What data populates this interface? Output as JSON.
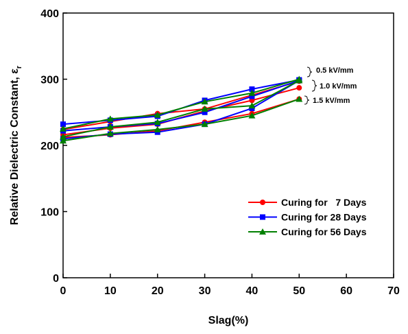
{
  "chart_data": {
    "type": "line",
    "x_label": "Slag(%)",
    "y_label": {
      "text": "Relative Dielectric Constant, ε",
      "subscript": "r"
    },
    "x": [
      0,
      10,
      20,
      30,
      40,
      50
    ],
    "xlim": [
      0,
      70
    ],
    "xticks": [
      0,
      10,
      20,
      30,
      40,
      50,
      60,
      70
    ],
    "ylim": [
      0,
      400
    ],
    "yticks": [
      0,
      100,
      200,
      300,
      400
    ],
    "annotations": [
      "0.5 kV/mm",
      "1.0 kV/mm",
      "1.5 kV/mm"
    ],
    "series": [
      {
        "name": "Curing for   7 Days",
        "color": "#ff0000",
        "marker": "circle",
        "values": [
          [
            224,
            236,
            248,
            255,
            276,
            297
          ],
          [
            216,
            226,
            232,
            252,
            268,
            287
          ],
          [
            212,
            216,
            222,
            235,
            248,
            270
          ]
        ]
      },
      {
        "name": "Curing for 28 Days",
        "color": "#0000ff",
        "marker": "square",
        "values": [
          [
            232,
            238,
            244,
            268,
            285,
            299
          ],
          [
            222,
            228,
            233,
            250,
            274,
            298
          ],
          [
            210,
            217,
            220,
            232,
            256,
            298
          ]
        ]
      },
      {
        "name": "Curing for 56 Days",
        "color": "#008000",
        "marker": "triangle",
        "values": [
          [
            225,
            240,
            246,
            266,
            279,
            300
          ],
          [
            213,
            228,
            235,
            255,
            260,
            298
          ],
          [
            207,
            218,
            224,
            232,
            245,
            270
          ]
        ]
      }
    ]
  }
}
